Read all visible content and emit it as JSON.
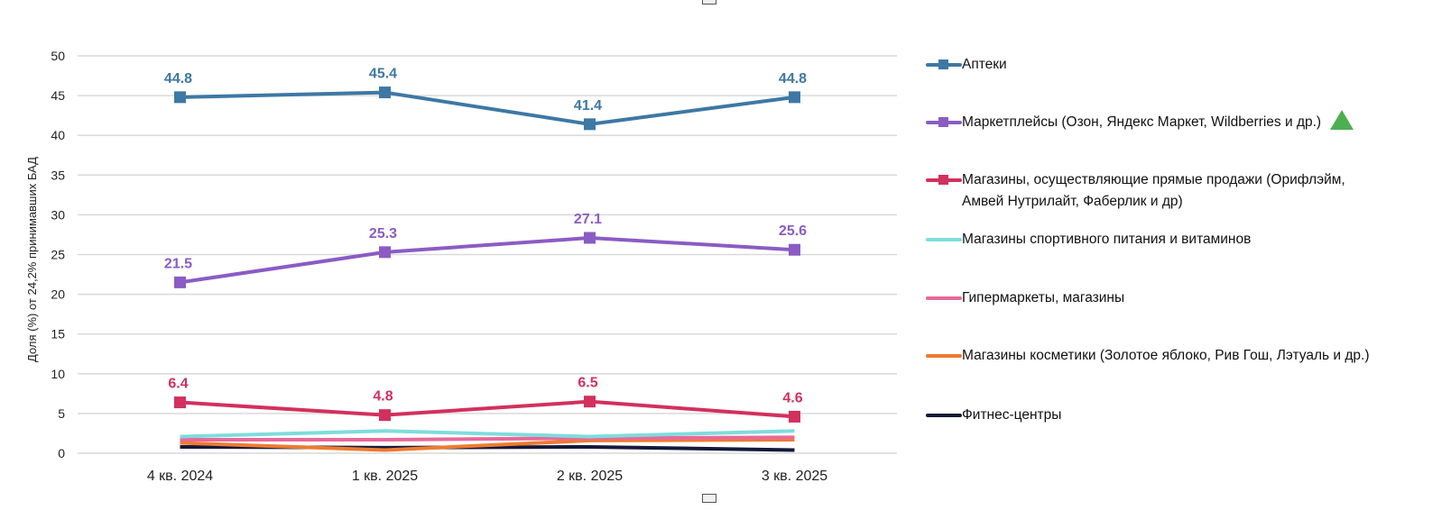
{
  "chart_data": {
    "type": "line",
    "title": "",
    "xlabel": "",
    "ylabel": "Доля (%) от 24,2% принимавших БАД",
    "ylim": [
      0,
      50
    ],
    "yticks": [
      0,
      5,
      10,
      15,
      20,
      25,
      30,
      35,
      40,
      45,
      50
    ],
    "grid": true,
    "legend_position": "right",
    "categories": [
      "4 кв. 2024",
      "1 кв. 2025",
      "2 кв. 2025",
      "3 кв. 2025"
    ],
    "series": [
      {
        "name": "Аптеки",
        "color": "#3e78a4",
        "marker": "square",
        "labels": true,
        "values": [
          44.8,
          45.4,
          41.4,
          44.8
        ]
      },
      {
        "name": "Маркетплейсы (Озон, Яндекс Маркет, Wildberries и др.)",
        "color": "#8a5cc4",
        "marker": "square",
        "labels": true,
        "values": [
          21.5,
          25.3,
          27.1,
          25.6
        ],
        "trend": "up"
      },
      {
        "name": "Магазины, осуществляющие прямые продажи (Орифлэйм, Амвей Нутрилайт, Фаберлик и др)",
        "color": "#d2305e",
        "marker": "square",
        "labels": true,
        "values": [
          6.4,
          4.8,
          6.5,
          4.6
        ]
      },
      {
        "name": "Магазины спортивного питания и витаминов",
        "color": "#7fdcdc",
        "marker": "none",
        "labels": false,
        "values": [
          2.1,
          2.8,
          2.1,
          2.8
        ]
      },
      {
        "name": "Гипермаркеты, магазины",
        "color": "#e8689a",
        "marker": "none",
        "labels": false,
        "values": [
          1.7,
          1.7,
          1.9,
          2.0
        ]
      },
      {
        "name": "Магазины косметики (Золотое яблоко, Рив Гош, Лэтуаль и др.)",
        "color": "#ee7b30",
        "marker": "none",
        "labels": false,
        "values": [
          1.3,
          0.4,
          1.6,
          1.7
        ]
      },
      {
        "name": "Фитнес-центры",
        "color": "#141a3a",
        "marker": "none",
        "labels": false,
        "values": [
          0.8,
          0.7,
          0.8,
          0.4
        ]
      }
    ]
  },
  "legend": {
    "trend_icon": "triangle-up-icon",
    "trend_color": "#4caf50"
  }
}
